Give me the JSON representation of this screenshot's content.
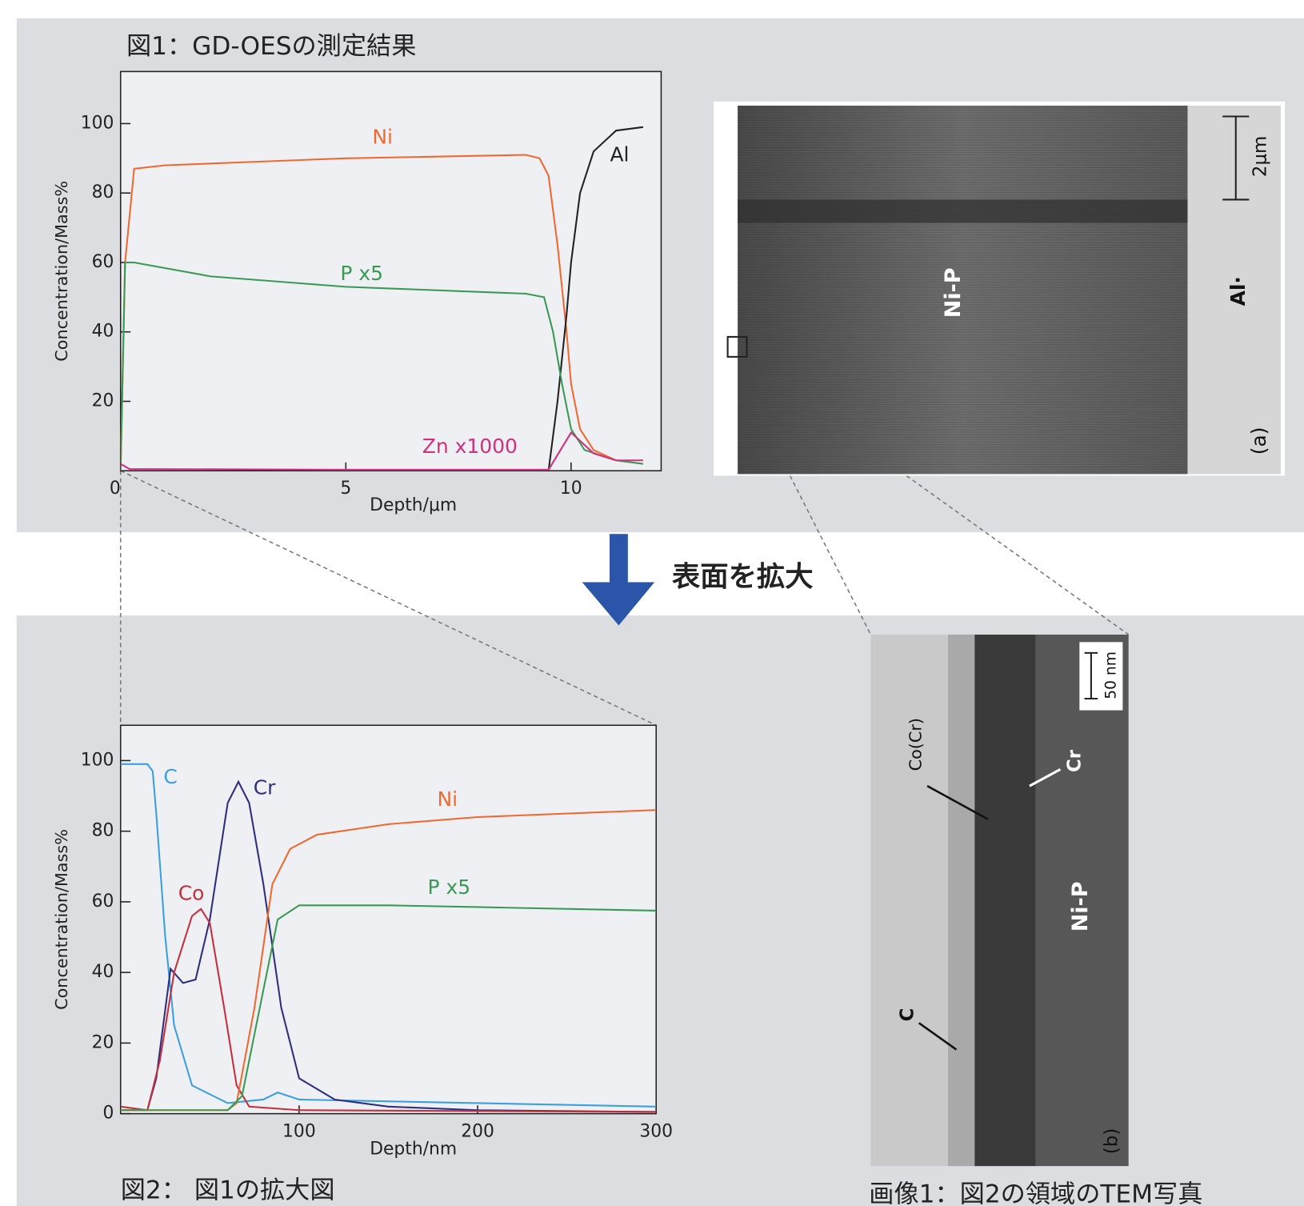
{
  "chart_data": [
    {
      "type": "line",
      "title": "図1：GD-OESの測定結果",
      "x_label": "Depth/μm",
      "y_label": "Concentration/Mass%",
      "xlim": [
        0,
        12
      ],
      "ylim": [
        0,
        115
      ],
      "xticks": [
        0,
        5,
        10
      ],
      "yticks": [
        20,
        40,
        60,
        80,
        100
      ],
      "series": [
        {
          "name": "Ni",
          "color": "#ef6a33",
          "x": [
            0,
            0.1,
            0.3,
            1,
            3,
            5,
            7,
            9,
            9.3,
            9.5,
            9.7,
            9.9,
            10,
            10.2,
            10.5,
            11,
            11.6
          ],
          "values": [
            0,
            60,
            87,
            88,
            89,
            90,
            90.5,
            91,
            90,
            85,
            65,
            40,
            25,
            12,
            6,
            3,
            2
          ]
        },
        {
          "name": "Al",
          "color": "#222222",
          "x": [
            9.5,
            9.7,
            9.9,
            10,
            10.2,
            10.5,
            11,
            11.6
          ],
          "values": [
            0,
            20,
            45,
            60,
            80,
            92,
            98,
            99
          ]
        },
        {
          "name": "P x5",
          "color": "#3a9a55",
          "x": [
            0,
            0.1,
            0.3,
            2,
            5,
            9,
            9.4,
            9.6,
            9.8,
            10,
            10.3,
            11,
            11.6
          ],
          "values": [
            0,
            60,
            60,
            56,
            53,
            51,
            50,
            40,
            25,
            12,
            6,
            3,
            2
          ]
        },
        {
          "name": "Zn x1000",
          "color": "#d3307c",
          "x": [
            0,
            0.2,
            5,
            9.5,
            10,
            10.5,
            11,
            11.6
          ],
          "values": [
            2,
            0.5,
            0.3,
            0.3,
            11,
            5,
            3,
            3
          ]
        }
      ]
    },
    {
      "type": "line",
      "title": "図2： 図1の拡大図",
      "x_label": "Depth/nm",
      "y_label": "Concentration/Mass%",
      "xlim": [
        0,
        300
      ],
      "ylim": [
        0,
        110
      ],
      "xticks": [
        100,
        200,
        300
      ],
      "yticks": [
        0,
        20,
        40,
        60,
        80,
        100
      ],
      "series": [
        {
          "name": "C",
          "color": "#3c9fe0",
          "x": [
            0,
            15,
            18,
            20,
            25,
            30,
            40,
            60,
            80,
            88,
            100,
            200,
            300
          ],
          "values": [
            99,
            99,
            97,
            85,
            50,
            25,
            8,
            3,
            4,
            6,
            4,
            3,
            2
          ]
        },
        {
          "name": "Cr",
          "color": "#2e2f7e",
          "x": [
            0,
            15,
            20,
            28,
            35,
            42,
            50,
            60,
            66,
            72,
            80,
            90,
            100,
            120,
            150,
            200,
            300
          ],
          "values": [
            1,
            1,
            10,
            41,
            37,
            38,
            55,
            88,
            94,
            88,
            65,
            30,
            10,
            4,
            2,
            1,
            0.5
          ]
        },
        {
          "name": "Co",
          "color": "#c4303e",
          "x": [
            0,
            15,
            22,
            30,
            40,
            45,
            50,
            58,
            65,
            72,
            100,
            300
          ],
          "values": [
            2,
            1,
            15,
            40,
            56,
            58,
            54,
            30,
            8,
            2,
            1,
            0.5
          ]
        },
        {
          "name": "Ni",
          "color": "#ef6a33",
          "x": [
            0,
            60,
            65,
            75,
            85,
            95,
            110,
            150,
            200,
            300
          ],
          "values": [
            1,
            1,
            3,
            30,
            65,
            75,
            79,
            82,
            84,
            86
          ]
        },
        {
          "name": "P x5",
          "color": "#3a9a55",
          "x": [
            0,
            60,
            68,
            78,
            88,
            100,
            150,
            200,
            300
          ],
          "values": [
            1,
            1,
            5,
            30,
            55,
            59,
            59,
            58.5,
            57.5
          ]
        }
      ]
    }
  ],
  "arrow_label": "表面を拡大",
  "images": [
    {
      "scale_bar": "2μm",
      "labels": [
        "Ni-P",
        "Al·",
        "(a)"
      ]
    },
    {
      "caption": "画像1：図2の領域のTEM写真",
      "scale_bar": "50 nm",
      "labels": [
        "Co(Cr)",
        "Cr",
        "Ni-P",
        "C",
        "(b)"
      ]
    }
  ]
}
